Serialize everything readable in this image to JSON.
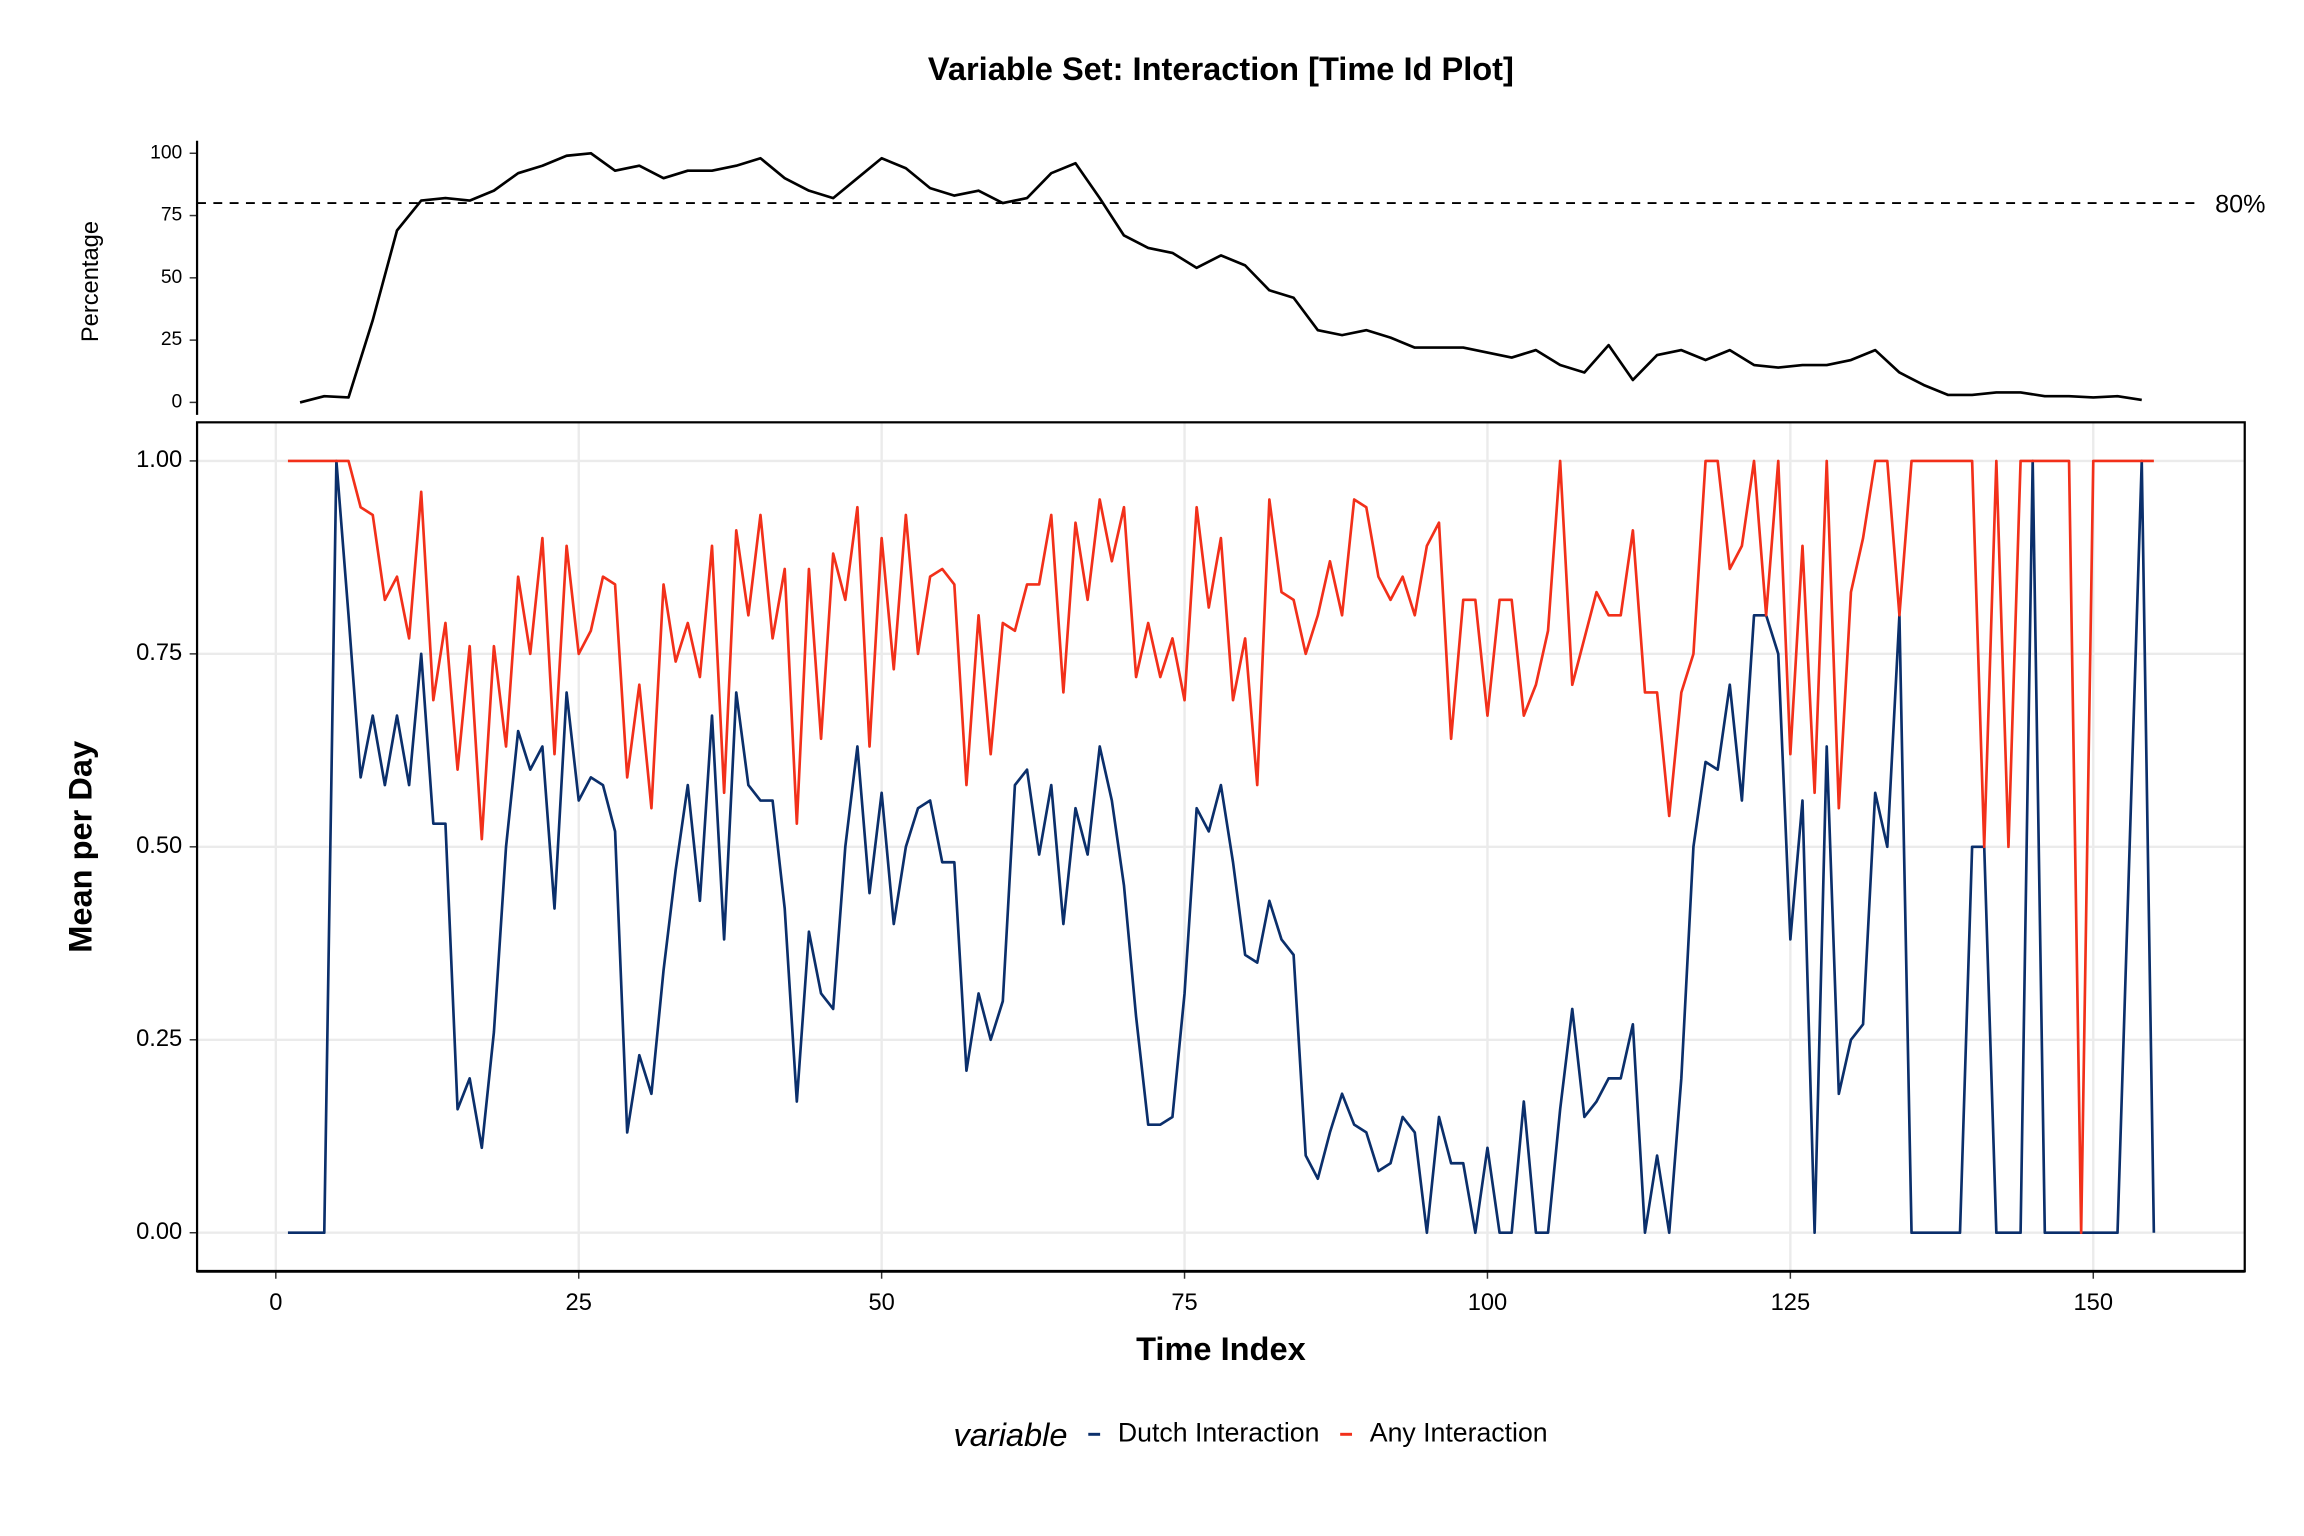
{
  "chart_data": [
    {
      "type": "line",
      "title": "Variable Set: Interaction [Time Id Plot]",
      "ylabel": "Percentage",
      "x": [
        2,
        4,
        6,
        8,
        10,
        12,
        14,
        16,
        18,
        20,
        22,
        24,
        26,
        28,
        30,
        32,
        34,
        36,
        38,
        40,
        42,
        44,
        46,
        48,
        50,
        52,
        54,
        56,
        58,
        60,
        62,
        64,
        66,
        68,
        70,
        72,
        74,
        76,
        78,
        80,
        82,
        84,
        86,
        88,
        90,
        92,
        94,
        96,
        98,
        100,
        102,
        104,
        106,
        108,
        110,
        112,
        114,
        116,
        118,
        120,
        122,
        124,
        126,
        128,
        130,
        132,
        134,
        136,
        138,
        140,
        142,
        144,
        146,
        148,
        150,
        152,
        154
      ],
      "values": [
        0,
        2.5,
        2,
        33,
        69,
        81,
        82,
        81,
        85,
        92,
        95,
        99,
        100,
        93,
        95,
        90,
        93,
        93,
        95,
        98,
        90,
        85,
        82,
        90,
        98,
        94,
        86,
        83,
        85,
        80,
        82,
        92,
        96,
        82,
        67,
        62,
        60,
        54,
        59,
        55,
        45,
        42,
        29,
        27,
        29,
        26,
        22,
        22,
        22,
        20,
        18,
        21,
        15,
        12,
        23,
        9,
        19,
        21,
        17,
        21,
        15,
        14,
        15,
        15,
        17,
        21,
        12,
        7,
        3,
        3,
        4,
        4,
        2.5,
        2.5,
        2,
        2.5,
        1
      ],
      "color": "#000000",
      "xlim": [
        -6.5,
        162.5
      ],
      "ylim": [
        -8,
        105
      ],
      "yticks": [
        0,
        25,
        50,
        75,
        100
      ],
      "hline": {
        "value": 80,
        "label": "80%"
      }
    },
    {
      "type": "line",
      "xlabel": "Time Index",
      "ylabel": "Mean per Day",
      "x": [
        1,
        2,
        3,
        4,
        5,
        6,
        7,
        8,
        9,
        10,
        11,
        12,
        13,
        14,
        15,
        16,
        17,
        18,
        19,
        20,
        21,
        22,
        23,
        24,
        25,
        26,
        27,
        28,
        29,
        30,
        31,
        32,
        33,
        34,
        35,
        36,
        37,
        38,
        39,
        40,
        41,
        42,
        43,
        44,
        45,
        46,
        47,
        48,
        49,
        50,
        51,
        52,
        53,
        54,
        55,
        56,
        57,
        58,
        59,
        60,
        61,
        62,
        63,
        64,
        65,
        66,
        67,
        68,
        69,
        70,
        71,
        72,
        73,
        74,
        75,
        76,
        77,
        78,
        79,
        80,
        81,
        82,
        83,
        84,
        85,
        86,
        87,
        88,
        89,
        90,
        91,
        92,
        93,
        94,
        95,
        96,
        97,
        98,
        99,
        100,
        101,
        102,
        103,
        104,
        105,
        106,
        107,
        108,
        109,
        110,
        111,
        112,
        113,
        114,
        115,
        116,
        117,
        118,
        119,
        120,
        121,
        122,
        123,
        124,
        125,
        126,
        127,
        128,
        129,
        130,
        131,
        132,
        133,
        134,
        135,
        136,
        137,
        138,
        139,
        140,
        141,
        142,
        143,
        144,
        145,
        146,
        147,
        148,
        149,
        150,
        151,
        152,
        153,
        154,
        155
      ],
      "series": [
        {
          "name": "Dutch Interaction",
          "color": "#0b2f6b",
          "values": [
            0,
            0,
            0,
            0,
            1,
            0.8,
            0.59,
            0.67,
            0.58,
            0.67,
            0.58,
            0.75,
            0.53,
            0.53,
            0.16,
            0.2,
            0.11,
            0.26,
            0.5,
            0.65,
            0.6,
            0.63,
            0.42,
            0.7,
            0.56,
            0.59,
            0.58,
            0.52,
            0.13,
            0.23,
            0.18,
            0.34,
            0.47,
            0.58,
            0.43,
            0.67,
            0.38,
            0.7,
            0.58,
            0.56,
            0.56,
            0.42,
            0.17,
            0.39,
            0.31,
            0.29,
            0.5,
            0.63,
            0.44,
            0.57,
            0.4,
            0.5,
            0.55,
            0.56,
            0.48,
            0.48,
            0.21,
            0.31,
            0.25,
            0.3,
            0.58,
            0.6,
            0.49,
            0.58,
            0.4,
            0.55,
            0.49,
            0.63,
            0.56,
            0.45,
            0.28,
            0.14,
            0.14,
            0.15,
            0.31,
            0.55,
            0.52,
            0.58,
            0.48,
            0.36,
            0.35,
            0.43,
            0.38,
            0.36,
            0.1,
            0.07,
            0.13,
            0.18,
            0.14,
            0.13,
            0.08,
            0.09,
            0.15,
            0.13,
            0,
            0.15,
            0.09,
            0.09,
            0,
            0.11,
            0,
            0,
            0.17,
            0,
            0,
            0.16,
            0.29,
            0.15,
            0.17,
            0.2,
            0.2,
            0.27,
            0,
            0.1,
            0,
            0.2,
            0.5,
            0.61,
            0.6,
            0.71,
            0.56,
            0.8,
            0.8,
            0.75,
            0.38,
            0.56,
            0,
            0.63,
            0.18,
            0.25,
            0.27,
            0.57,
            0.5,
            0.8,
            0,
            0,
            0,
            0,
            0,
            0.5,
            0.5,
            0,
            0,
            0,
            1,
            0,
            0,
            0,
            0,
            0,
            0,
            0,
            0.5,
            1,
            0
          ]
        },
        {
          "name": "Any Interaction",
          "color": "#f2301a",
          "values": [
            1,
            1,
            1,
            1,
            1,
            1,
            0.94,
            0.93,
            0.82,
            0.85,
            0.77,
            0.96,
            0.69,
            0.79,
            0.6,
            0.76,
            0.51,
            0.76,
            0.63,
            0.85,
            0.75,
            0.9,
            0.62,
            0.89,
            0.75,
            0.78,
            0.85,
            0.84,
            0.59,
            0.71,
            0.55,
            0.84,
            0.74,
            0.79,
            0.72,
            0.89,
            0.57,
            0.91,
            0.8,
            0.93,
            0.77,
            0.86,
            0.53,
            0.86,
            0.64,
            0.88,
            0.82,
            0.94,
            0.63,
            0.9,
            0.73,
            0.93,
            0.75,
            0.85,
            0.86,
            0.84,
            0.58,
            0.8,
            0.62,
            0.79,
            0.78,
            0.84,
            0.84,
            0.93,
            0.7,
            0.92,
            0.82,
            0.95,
            0.87,
            0.94,
            0.72,
            0.79,
            0.72,
            0.77,
            0.69,
            0.94,
            0.81,
            0.9,
            0.69,
            0.77,
            0.58,
            0.95,
            0.83,
            0.82,
            0.75,
            0.8,
            0.87,
            0.8,
            0.95,
            0.94,
            0.85,
            0.82,
            0.85,
            0.8,
            0.89,
            0.92,
            0.64,
            0.82,
            0.82,
            0.67,
            0.82,
            0.82,
            0.67,
            0.71,
            0.78,
            1,
            0.71,
            0.77,
            0.83,
            0.8,
            0.8,
            0.91,
            0.7,
            0.7,
            0.54,
            0.7,
            0.75,
            1,
            1,
            0.86,
            0.89,
            1,
            0.8,
            1,
            0.62,
            0.89,
            0.57,
            1,
            0.55,
            0.83,
            0.9,
            1,
            1,
            0.8,
            1,
            1,
            1,
            1,
            1,
            1,
            0.5,
            1,
            0.5,
            1,
            1,
            1,
            1,
            1,
            0,
            1,
            1,
            1,
            1,
            1,
            1
          ]
        }
      ],
      "xlim": [
        -6.5,
        162.5
      ],
      "ylim": [
        -0.05,
        1.05
      ],
      "xticks": [
        0,
        25,
        50,
        75,
        100,
        125,
        150
      ],
      "yticks": [
        {
          "value": 0,
          "label": "0.00"
        },
        {
          "value": 0.25,
          "label": "0.25"
        },
        {
          "value": 0.5,
          "label": "0.50"
        },
        {
          "value": 0.75,
          "label": "0.75"
        },
        {
          "value": 1,
          "label": "1.00"
        }
      ],
      "grid": true,
      "legend": "bottom",
      "legend_title": "variable"
    }
  ]
}
